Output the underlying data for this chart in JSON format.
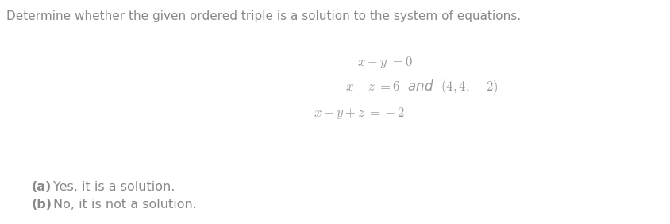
{
  "background_color": "#ffffff",
  "title_text": "Determine whether the given ordered triple is a solution to the system of equations.",
  "title_fontsize": 11.0,
  "title_color": "#888888",
  "eq1": "$x - y\\ =0$",
  "eq2": "$x - z\\ =6$  and  $(4,4,-2)$",
  "eq3": "$x - y + z\\ = -2$",
  "eq_fontsize": 12,
  "eq_color": "#999999",
  "option_a_bold": "(a)",
  "option_a_rest": "Yes, it is a solution.",
  "option_b_bold": "(b)",
  "option_b_rest": "No, it is not a solution.",
  "option_fontsize": 11.5,
  "option_color": "#888888",
  "fig_width": 8.44,
  "fig_height": 2.82,
  "dpi": 100
}
